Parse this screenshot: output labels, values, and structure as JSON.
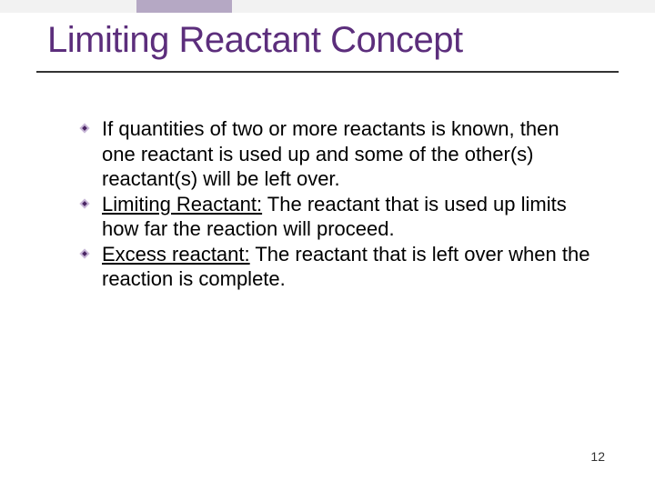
{
  "slide": {
    "title": "Limiting Reactant Concept",
    "page_number": "12",
    "bullets": [
      {
        "text_parts": [
          {
            "text": "If quantities of two or more reactants is known, then one reactant is used up and some of the other(s) reactant(s) will be left over.",
            "underlined": false
          }
        ]
      },
      {
        "text_parts": [
          {
            "text": "Limiting Reactant:",
            "underlined": true
          },
          {
            "text": " The reactant that is used up limits how far the reaction will proceed.",
            "underlined": false
          }
        ]
      },
      {
        "text_parts": [
          {
            "text": "Excess reactant:",
            "underlined": true
          },
          {
            "text": " The reactant that is left over when the reaction is complete.",
            "underlined": false
          }
        ]
      }
    ],
    "colors": {
      "title_color": "#5c2e7c",
      "bullet_light": "#c9b8d8",
      "bullet_dark": "#4a2563",
      "top_accent": "#b5a8c4",
      "top_bar": "#f2f2f2"
    }
  }
}
